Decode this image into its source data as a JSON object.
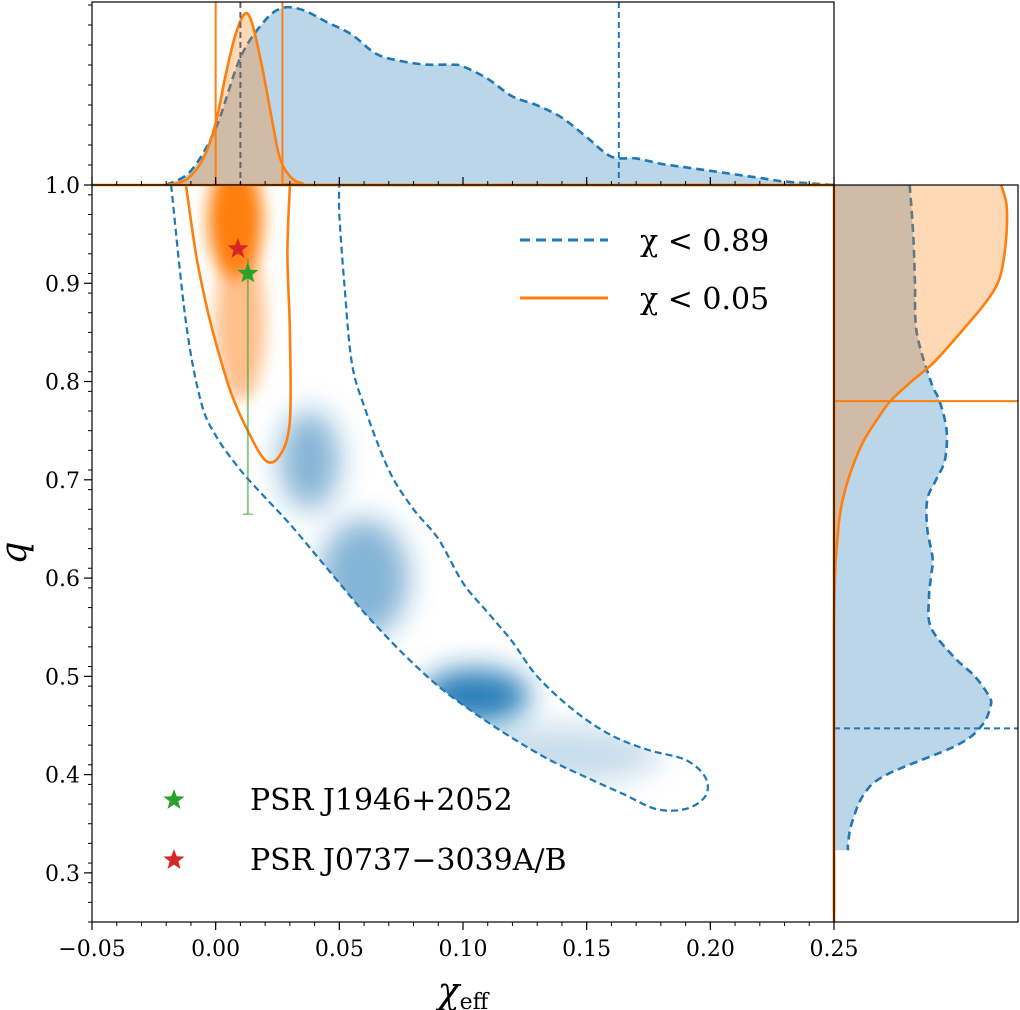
{
  "chart_data": {
    "type": "scatter",
    "title": "",
    "xlabel": "χ",
    "xlabel_sub": "eff",
    "ylabel": "q",
    "xlim": [
      -0.05,
      0.25
    ],
    "ylim": [
      0.25,
      1.0
    ],
    "xticks": [
      -0.05,
      0.0,
      0.05,
      0.1,
      0.15,
      0.2,
      0.25
    ],
    "xtick_labels": [
      "−0.05",
      "0.00",
      "0.05",
      "0.10",
      "0.15",
      "0.20",
      "0.25"
    ],
    "yticks": [
      0.3,
      0.4,
      0.5,
      0.6,
      0.7,
      0.8,
      0.9,
      1.0
    ],
    "ytick_labels": [
      "0.3",
      "0.4",
      "0.5",
      "0.6",
      "0.7",
      "0.8",
      "0.9",
      "1.0"
    ],
    "legend_position": "top-right",
    "legend": [
      {
        "label": "χ < 0.89",
        "color": "#1f77b4",
        "style": "dashed"
      },
      {
        "label": "χ < 0.05",
        "color": "#ff7f0e",
        "style": "solid"
      }
    ],
    "stars_legend_position": "bottom-left",
    "stars": [
      {
        "label": "PSR J1946+2052",
        "color": "#2ca02c",
        "x": 0.013,
        "y": 0.91,
        "yerr_low": 0.665,
        "yerr_high": 0.925
      },
      {
        "label": "PSR J0737−3039A/B",
        "color": "#d62728",
        "x": 0.009,
        "y": 0.935
      }
    ],
    "series": [
      {
        "name": "χ < 0.89",
        "color": "#1f77b4",
        "contour": [
          [
            -0.018,
            1.0
          ],
          [
            -0.012,
            0.86
          ],
          [
            -0.006,
            0.78
          ],
          [
            0.0,
            0.745
          ],
          [
            0.01,
            0.71
          ],
          [
            0.02,
            0.682
          ],
          [
            0.03,
            0.655
          ],
          [
            0.04,
            0.625
          ],
          [
            0.05,
            0.595
          ],
          [
            0.06,
            0.565
          ],
          [
            0.075,
            0.525
          ],
          [
            0.09,
            0.49
          ],
          [
            0.105,
            0.462
          ],
          [
            0.12,
            0.437
          ],
          [
            0.135,
            0.415
          ],
          [
            0.15,
            0.397
          ],
          [
            0.165,
            0.38
          ],
          [
            0.178,
            0.365
          ],
          [
            0.19,
            0.365
          ],
          [
            0.198,
            0.378
          ],
          [
            0.198,
            0.397
          ],
          [
            0.19,
            0.415
          ],
          [
            0.175,
            0.425
          ],
          [
            0.16,
            0.44
          ],
          [
            0.145,
            0.465
          ],
          [
            0.13,
            0.5
          ],
          [
            0.12,
            0.535
          ],
          [
            0.11,
            0.565
          ],
          [
            0.1,
            0.595
          ],
          [
            0.09,
            0.64
          ],
          [
            0.08,
            0.67
          ],
          [
            0.07,
            0.71
          ],
          [
            0.06,
            0.775
          ],
          [
            0.055,
            0.82
          ],
          [
            0.052,
            0.9
          ],
          [
            0.05,
            0.97
          ],
          [
            0.05,
            1.0
          ]
        ],
        "density_blobs": [
          {
            "x": 0.105,
            "y": 0.48,
            "rx": 0.022,
            "ry": 0.028,
            "opacity": 0.95
          },
          {
            "x": 0.06,
            "y": 0.6,
            "rx": 0.018,
            "ry": 0.06,
            "opacity": 0.55
          },
          {
            "x": 0.038,
            "y": 0.72,
            "rx": 0.012,
            "ry": 0.05,
            "opacity": 0.55
          },
          {
            "x": 0.14,
            "y": 0.42,
            "rx": 0.04,
            "ry": 0.03,
            "opacity": 0.25
          }
        ],
        "marginal_x": {
          "x": [
            -0.02,
            -0.01,
            0.0,
            0.01,
            0.02,
            0.027,
            0.035,
            0.045,
            0.055,
            0.065,
            0.075,
            0.085,
            0.095,
            0.1,
            0.11,
            0.12,
            0.13,
            0.14,
            0.15,
            0.16,
            0.17,
            0.18,
            0.19,
            0.2,
            0.21,
            0.22,
            0.23,
            0.25
          ],
          "y": [
            0.0,
            0.08,
            0.32,
            0.72,
            0.93,
            1.0,
            0.99,
            0.92,
            0.85,
            0.74,
            0.7,
            0.68,
            0.68,
            0.67,
            0.6,
            0.5,
            0.45,
            0.38,
            0.27,
            0.16,
            0.15,
            0.12,
            0.1,
            0.08,
            0.06,
            0.04,
            0.02,
            0.0
          ],
          "ci": [
            0.01,
            0.163
          ]
        },
        "marginal_q": {
          "q": [
            1.0,
            0.95,
            0.9,
            0.85,
            0.8,
            0.78,
            0.75,
            0.72,
            0.7,
            0.68,
            0.65,
            0.62,
            0.6,
            0.58,
            0.55,
            0.52,
            0.5,
            0.48,
            0.47,
            0.45,
            0.43,
            0.4,
            0.38,
            0.35,
            0.33,
            0.323
          ],
          "w": [
            0.43,
            0.45,
            0.46,
            0.47,
            0.55,
            0.6,
            0.64,
            0.63,
            0.58,
            0.53,
            0.53,
            0.56,
            0.55,
            0.54,
            0.55,
            0.68,
            0.8,
            0.88,
            0.89,
            0.84,
            0.7,
            0.3,
            0.17,
            0.1,
            0.08,
            0.08
          ],
          "ci": 0.447
        }
      },
      {
        "name": "χ < 0.05",
        "color": "#ff7f0e",
        "contour": [
          [
            -0.012,
            1.0
          ],
          [
            -0.008,
            0.93
          ],
          [
            -0.004,
            0.88
          ],
          [
            0.0,
            0.84
          ],
          [
            0.006,
            0.79
          ],
          [
            0.012,
            0.755
          ],
          [
            0.02,
            0.72
          ],
          [
            0.026,
            0.725
          ],
          [
            0.03,
            0.76
          ],
          [
            0.03,
            0.85
          ],
          [
            0.029,
            0.93
          ],
          [
            0.03,
            1.0
          ]
        ],
        "density_blobs": [
          {
            "x": 0.008,
            "y": 0.965,
            "rx": 0.011,
            "ry": 0.06,
            "opacity": 1.0
          },
          {
            "x": 0.01,
            "y": 0.86,
            "rx": 0.01,
            "ry": 0.08,
            "opacity": 0.5
          }
        ],
        "marginal_x": {
          "x": [
            -0.02,
            -0.012,
            -0.005,
            0.0,
            0.004,
            0.008,
            0.012,
            0.015,
            0.019,
            0.023,
            0.026,
            0.03,
            0.035,
            0.045,
            0.25
          ],
          "y": [
            0.0,
            0.03,
            0.15,
            0.35,
            0.62,
            0.85,
            0.97,
            0.9,
            0.65,
            0.35,
            0.15,
            0.05,
            0.01,
            0.0,
            0.0
          ],
          "ci": [
            0.0,
            0.027
          ]
        },
        "marginal_q": {
          "q": [
            1.0,
            0.98,
            0.95,
            0.92,
            0.9,
            0.88,
            0.85,
            0.82,
            0.8,
            0.78,
            0.76,
            0.74,
            0.72,
            0.7,
            0.68,
            0.66,
            0.64,
            0.62,
            0.6,
            0.55,
            0.5,
            0.45,
            0.4,
            0.35,
            0.3,
            0.26
          ],
          "w": [
            0.95,
            0.98,
            0.98,
            0.96,
            0.93,
            0.86,
            0.72,
            0.57,
            0.44,
            0.32,
            0.24,
            0.17,
            0.12,
            0.08,
            0.05,
            0.03,
            0.02,
            0.01,
            0.005,
            0.0,
            0.0,
            0.0,
            0.0,
            0.0,
            0.0,
            0.0
          ],
          "ci": 0.78
        }
      }
    ]
  }
}
